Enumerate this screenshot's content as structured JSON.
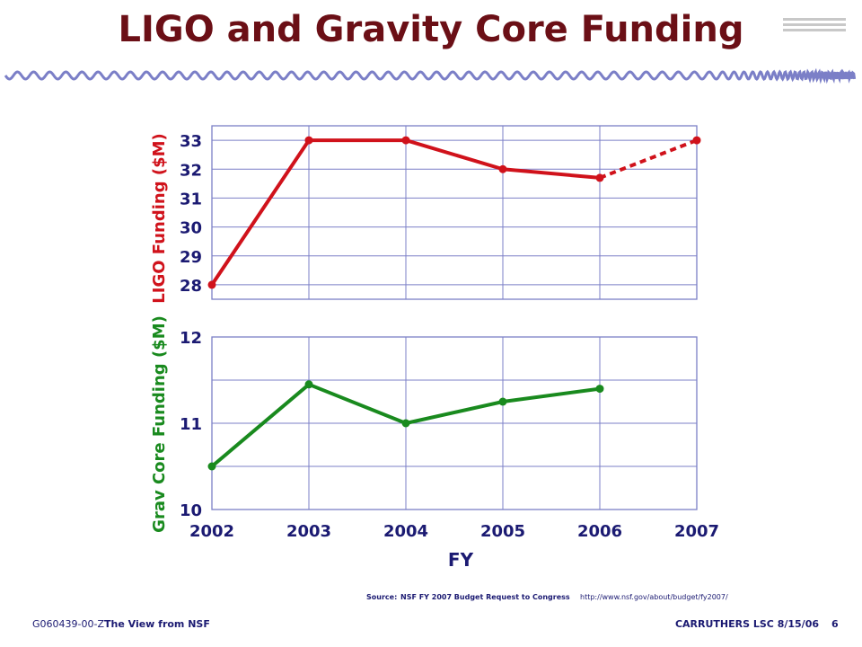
{
  "slide": {
    "title": "LIGO and Gravity Core Funding",
    "footer_left": "G060439-00-Z",
    "footer_left_title": "The View from NSF",
    "footer_right": "CARRUTHERS LSC 8/15/06",
    "page_number": "6",
    "source_label": "Source:",
    "source_text": "NSF FY 2007 Budget Request to Congress",
    "source_url": "http://www.nsf.gov/about/budget/fy2007/",
    "colors": {
      "title": "#6b0f16",
      "axis_text": "#1b1a72",
      "grid": "#7b7fc7",
      "wave": "#7b7fc7"
    }
  },
  "chart_data": [
    {
      "type": "line",
      "ylabel": "LIGO Funding ($M)",
      "xlabel": "",
      "x": [
        2002,
        2003,
        2004,
        2005,
        2006,
        2007
      ],
      "xlim": [
        2002,
        2007
      ],
      "ylim": [
        27.5,
        33.5
      ],
      "yticks": [
        28,
        29,
        30,
        31,
        32,
        33
      ],
      "grid": true,
      "series": [
        {
          "color": "#d0121b",
          "values": [
            28,
            33,
            33,
            32,
            31.7,
            33
          ],
          "dashed_from_index": 4
        }
      ]
    },
    {
      "type": "line",
      "ylabel": "Grav Core Funding ($M)",
      "xlabel": "FY",
      "x": [
        2002,
        2003,
        2004,
        2005,
        2006,
        2007
      ],
      "xticks": [
        "2002",
        "2003",
        "2004",
        "2005",
        "2006",
        "2007"
      ],
      "xlim": [
        2002,
        2007
      ],
      "ylim": [
        10,
        12
      ],
      "yticks": [
        10,
        11,
        12
      ],
      "grid": true,
      "series": [
        {
          "color": "#198a1e",
          "values": [
            10.5,
            11.45,
            11.0,
            11.25,
            11.4,
            null
          ]
        }
      ]
    }
  ]
}
